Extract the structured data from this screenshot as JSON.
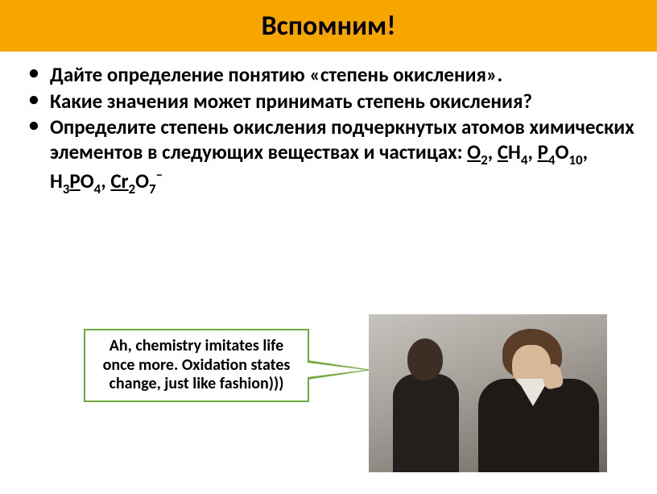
{
  "colors": {
    "title_bg": "#f7a600",
    "bullet": "#000000",
    "callout_border": "#6fa83e"
  },
  "title": {
    "text": "Вспомним!",
    "fontsize": 34
  },
  "bullets": {
    "fontsize": 25,
    "items": [
      {
        "plain": "Дайте определение понятию «степень окисления»."
      },
      {
        "plain": "Какие значения может принимать степень окисления?"
      },
      {
        "lead": "Определите степень окисления подчеркнутых атомов химических элементов в следующих веществах и частицах: ",
        "formulas": [
          {
            "parts": [
              {
                "t": "O",
                "u": true
              },
              {
                "t": "2",
                "sub": true
              }
            ],
            "sep": ", "
          },
          {
            "parts": [
              {
                "t": "C",
                "u": true
              },
              {
                "t": "H"
              },
              {
                "t": "4",
                "sub": true
              }
            ],
            "sep": ", "
          },
          {
            "parts": [
              {
                "t": "P",
                "u": true
              },
              {
                "t": "4",
                "sub": true
              },
              {
                "t": "O"
              },
              {
                "t": "10",
                "sub": true
              }
            ],
            "sep": ", "
          },
          {
            "parts": [
              {
                "t": "H"
              },
              {
                "t": "3",
                "sub": true
              },
              {
                "t": "P",
                "u": true
              },
              {
                "t": "O"
              },
              {
                "t": "4",
                "sub": true
              }
            ],
            "sep": ", "
          },
          {
            "parts": [
              {
                "t": "Cr",
                "u": true
              },
              {
                "t": "2",
                "sub": true
              },
              {
                "t": "O"
              },
              {
                "t": "7",
                "sub": true
              },
              {
                "t": "–",
                "sup": true
              }
            ],
            "sep": ""
          }
        ]
      }
    ]
  },
  "callout": {
    "text": "Ah, chemistry imitates life once more.  Oxidation states change, just like fashion)))",
    "fontsize": 20
  }
}
